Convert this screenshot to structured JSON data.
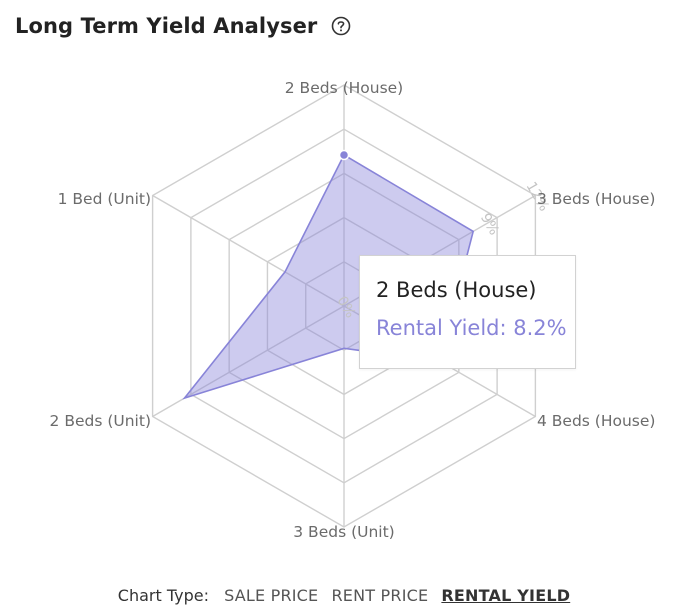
{
  "header": {
    "title": "Long Term Yield Analyser",
    "help_icon": "help-circle-icon"
  },
  "chart_data": {
    "type": "radar",
    "categories": [
      "2 Beds (House)",
      "3 Beds (House)",
      "4 Beds (House)",
      "3 Beds (Unit)",
      "2 Beds (Unit)",
      "1 Bed (Unit)"
    ],
    "series": [
      {
        "values": [
          8.2,
          8.1,
          6.0,
          2.3,
          10.0,
          3.7
        ],
        "color": "#8884d8"
      }
    ],
    "radial_ticks": [
      "0%",
      "9%",
      "12%"
    ],
    "grid_rings": 5,
    "domain": [
      0,
      12
    ]
  },
  "tooltip": {
    "title": "2 Beds (House)",
    "label": "Rental Yield",
    "value": "8.2%"
  },
  "chart_type": {
    "label": "Chart Type:",
    "options": [
      "SALE PRICE",
      "RENT PRICE",
      "RENTAL YIELD"
    ],
    "active": "RENTAL YIELD"
  }
}
